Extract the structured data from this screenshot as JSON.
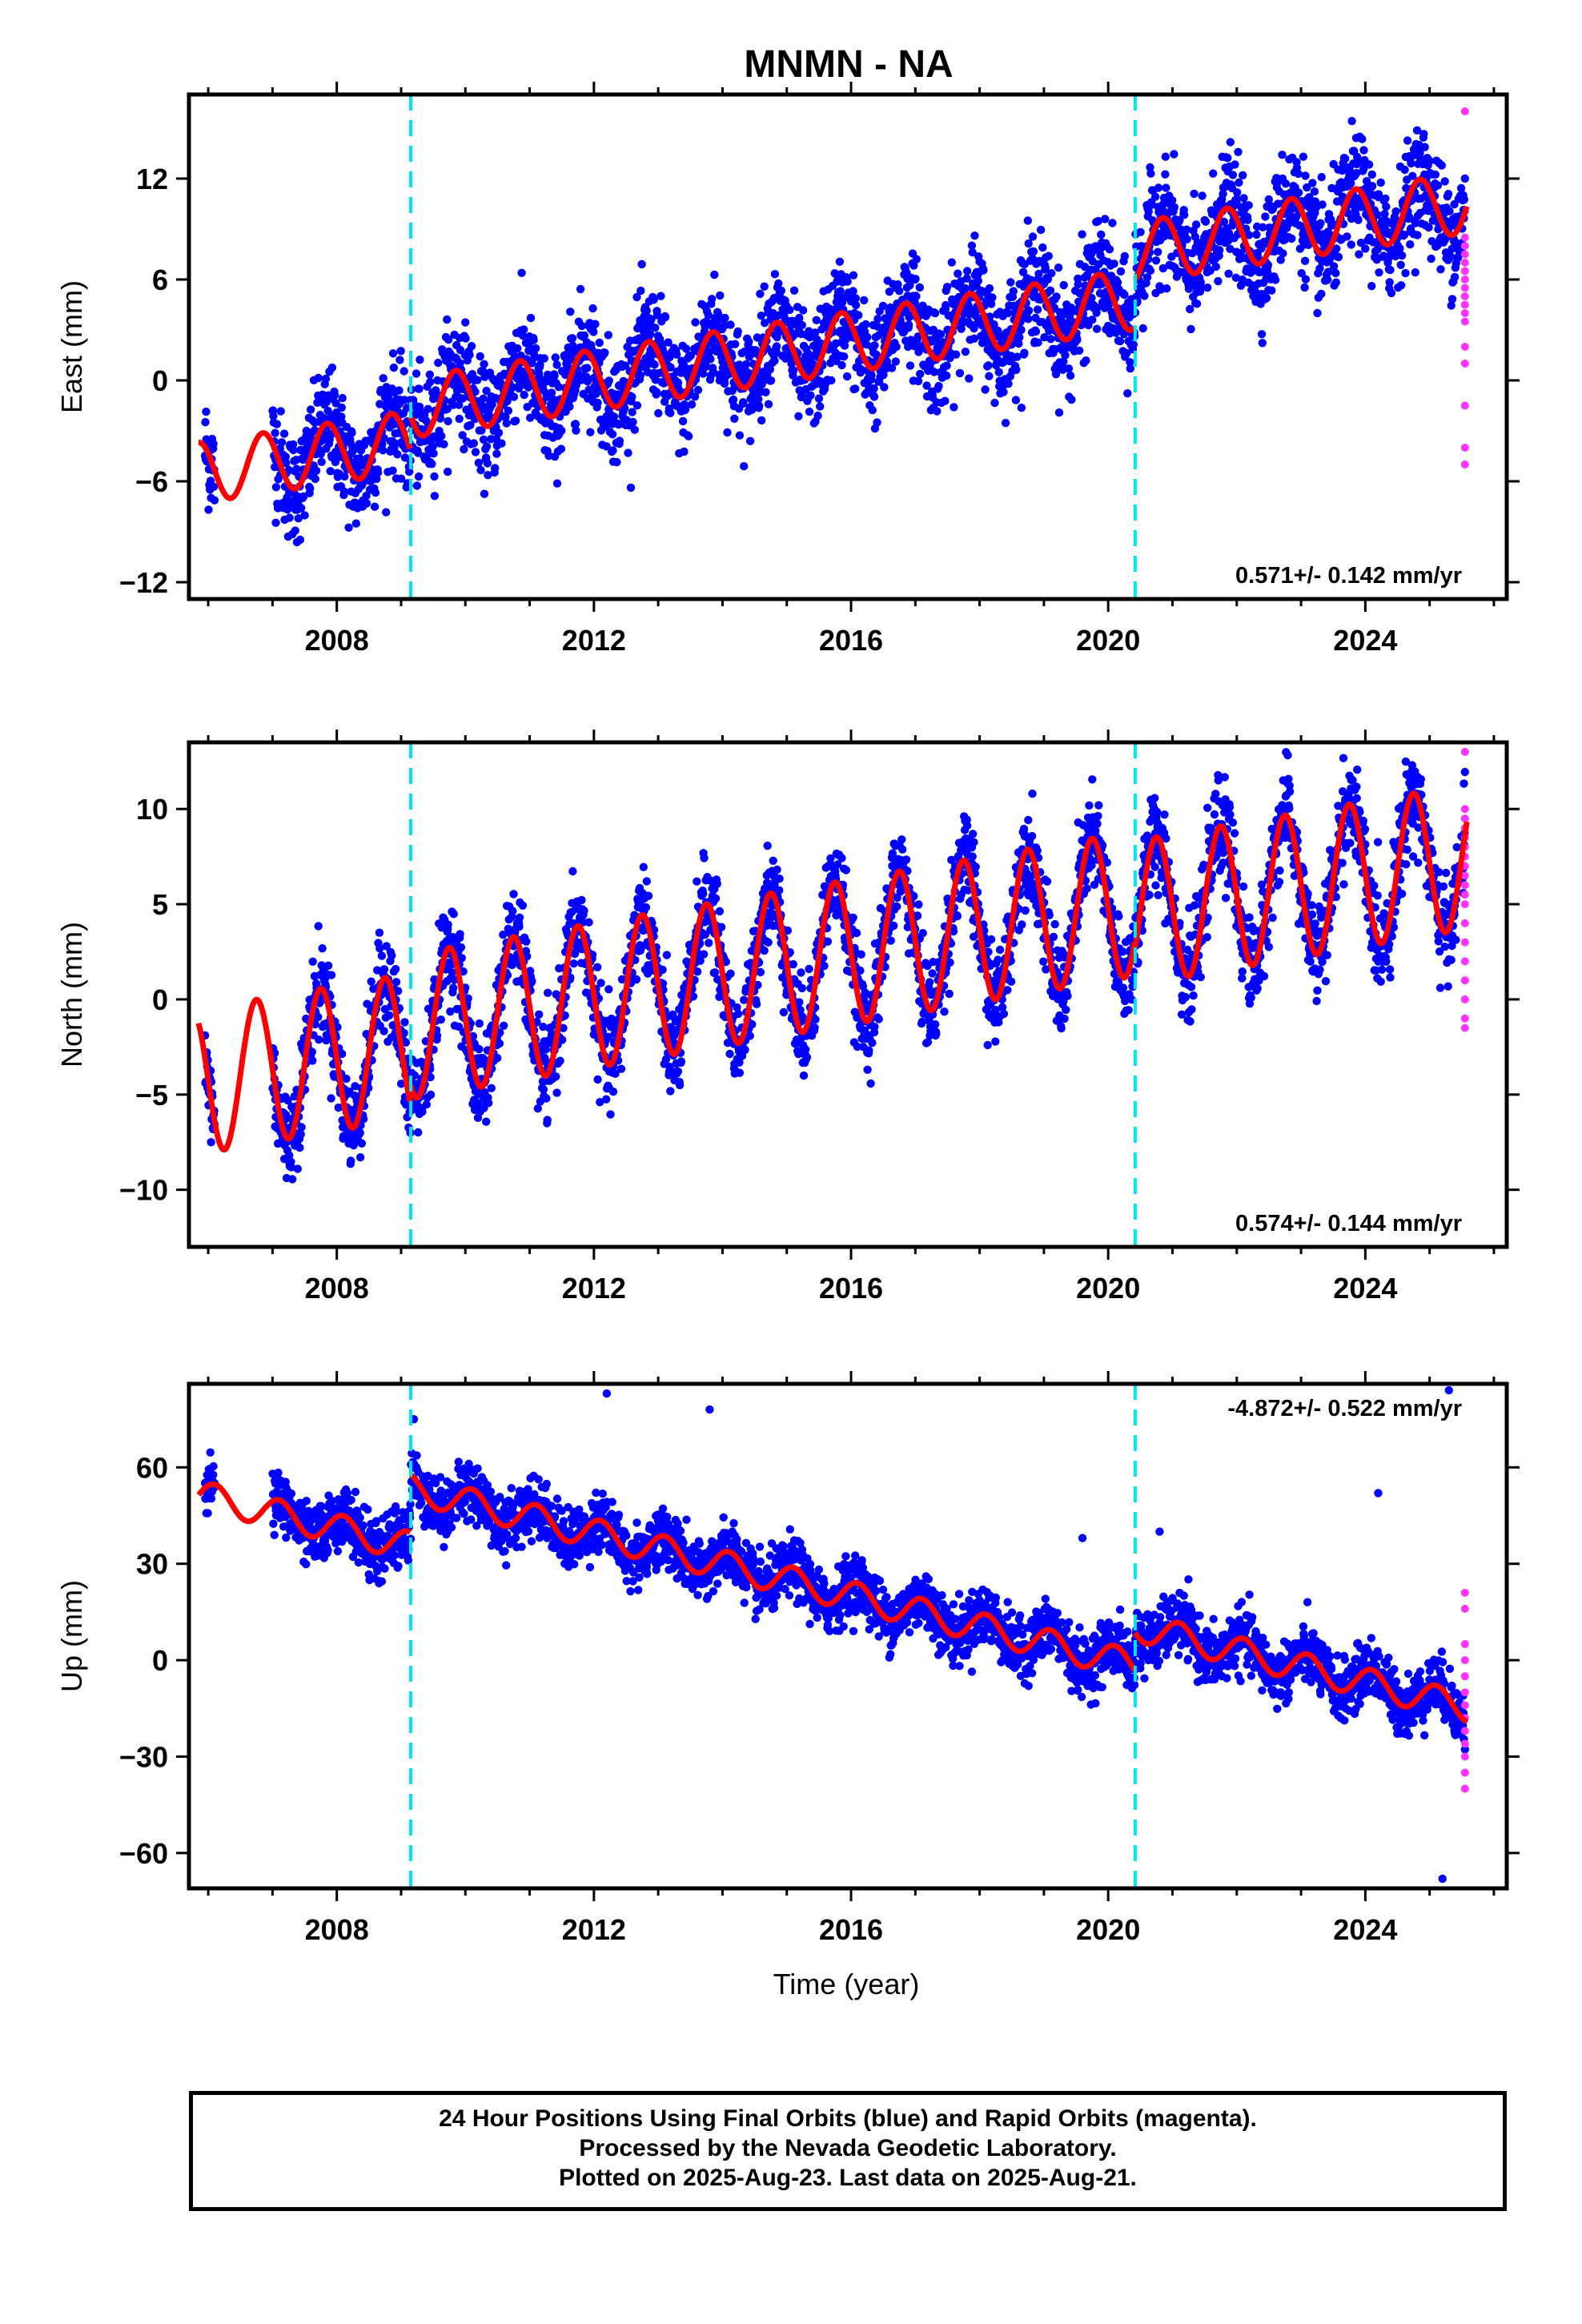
{
  "title": "MNMN - NA",
  "xlabel": "Time (year)",
  "caption": {
    "line1": "24 Hour Positions Using Final Orbits (blue) and Rapid Orbits (magenta).",
    "line2": "Processed by the Nevada Geodetic Laboratory.",
    "line3": "Plotted on 2025-Aug-23. Last data on 2025-Aug-21."
  },
  "colors": {
    "final_orbits": "#0000ff",
    "rapid_orbits": "#ff33ff",
    "model": "#ff0000",
    "offsets": "#00e5ee"
  },
  "chart_data": [
    {
      "type": "scatter",
      "panel": "east",
      "ylabel": "East (mm)",
      "xlim": [
        2005.7,
        2026.2
      ],
      "ylim": [
        -13,
        17
      ],
      "xticks": [
        2008,
        2012,
        2016,
        2020,
        2024
      ],
      "yticks": [
        -12,
        -6,
        0,
        6,
        12
      ],
      "rate_label": "0.571+/- 0.142 mm/yr",
      "offset_epochs": [
        2009.15,
        2020.42
      ],
      "model": {
        "t0": 2016,
        "intercept": 0.3,
        "rate": 0.571,
        "amplitude": 1.8,
        "phase_year_fraction": 0.6,
        "steps": [
          {
            "epoch": 2009.15,
            "size": 2.0
          },
          {
            "epoch": 2020.42,
            "size": 2.8
          }
        ]
      },
      "scatter_sd": 1.6,
      "data_start": 2005.95,
      "gap": [
        2006.1,
        2007.0
      ],
      "data_end": 2025.55,
      "rapid_orbit_values": [
        16,
        8.5,
        8,
        7.5,
        7,
        6.5,
        6,
        5.5,
        5,
        4.5,
        4,
        3.5,
        2,
        1,
        -1.5,
        -4,
        -5
      ]
    },
    {
      "type": "scatter",
      "panel": "north",
      "ylabel": "North (mm)",
      "xlim": [
        2005.7,
        2026.2
      ],
      "ylim": [
        -13,
        13.5
      ],
      "xticks": [
        2008,
        2012,
        2016,
        2020,
        2024
      ],
      "yticks": [
        -10,
        -5,
        0,
        5,
        10
      ],
      "rate_label": "0.574+/- 0.144 mm/yr",
      "offset_epochs": [
        2009.15,
        2020.42
      ],
      "model": {
        "t0": 2016,
        "intercept": 1.5,
        "rate": 0.574,
        "amplitude": 3.8,
        "phase_year_fraction": 0.5,
        "steps": [
          {
            "epoch": 2009.15,
            "size": 1.0
          },
          {
            "epoch": 2020.42,
            "size": -0.5
          }
        ]
      },
      "scatter_sd": 1.2,
      "data_start": 2005.95,
      "gap": [
        2006.1,
        2007.0
      ],
      "data_end": 2025.55,
      "rapid_orbit_values": [
        13,
        10,
        9.5,
        9,
        8.5,
        8,
        7.5,
        7,
        6.5,
        6,
        5.5,
        5,
        4,
        3,
        2,
        1,
        0,
        -1,
        -1.5
      ]
    },
    {
      "type": "scatter",
      "panel": "up",
      "ylabel": "Up (mm)",
      "xlim": [
        2005.7,
        2026.2
      ],
      "ylim": [
        -71,
        86
      ],
      "xticks": [
        2008,
        2012,
        2016,
        2020,
        2024
      ],
      "yticks": [
        -60,
        -30,
        0,
        30,
        60
      ],
      "rate_label": "-4.872+/- 0.522 mm/yr",
      "offset_epochs": [
        2009.15,
        2020.42
      ],
      "model": {
        "t0": 2016,
        "intercept": 2.0,
        "rate": -4.872,
        "amplitude": 4.5,
        "phase_year_fraction": 0.85,
        "steps": [
          {
            "epoch": 2009.15,
            "size": 18.0
          },
          {
            "epoch": 2020.42,
            "size": 12.0
          }
        ]
      },
      "scatter_sd": 4.5,
      "data_start": 2005.95,
      "gap": [
        2006.1,
        2007.0
      ],
      "data_end": 2025.55,
      "rapid_orbit_values": [
        21,
        16,
        5,
        0,
        -5,
        -10,
        -14,
        -18,
        -22,
        -26,
        -30,
        -35,
        -40
      ],
      "outliers": [
        [
          2009.2,
          75
        ],
        [
          2012.2,
          83
        ],
        [
          2013.8,
          78
        ],
        [
          2019.6,
          38
        ],
        [
          2020.8,
          40
        ],
        [
          2024.2,
          52
        ],
        [
          2025.3,
          84
        ],
        [
          2025.2,
          -68
        ]
      ]
    }
  ]
}
